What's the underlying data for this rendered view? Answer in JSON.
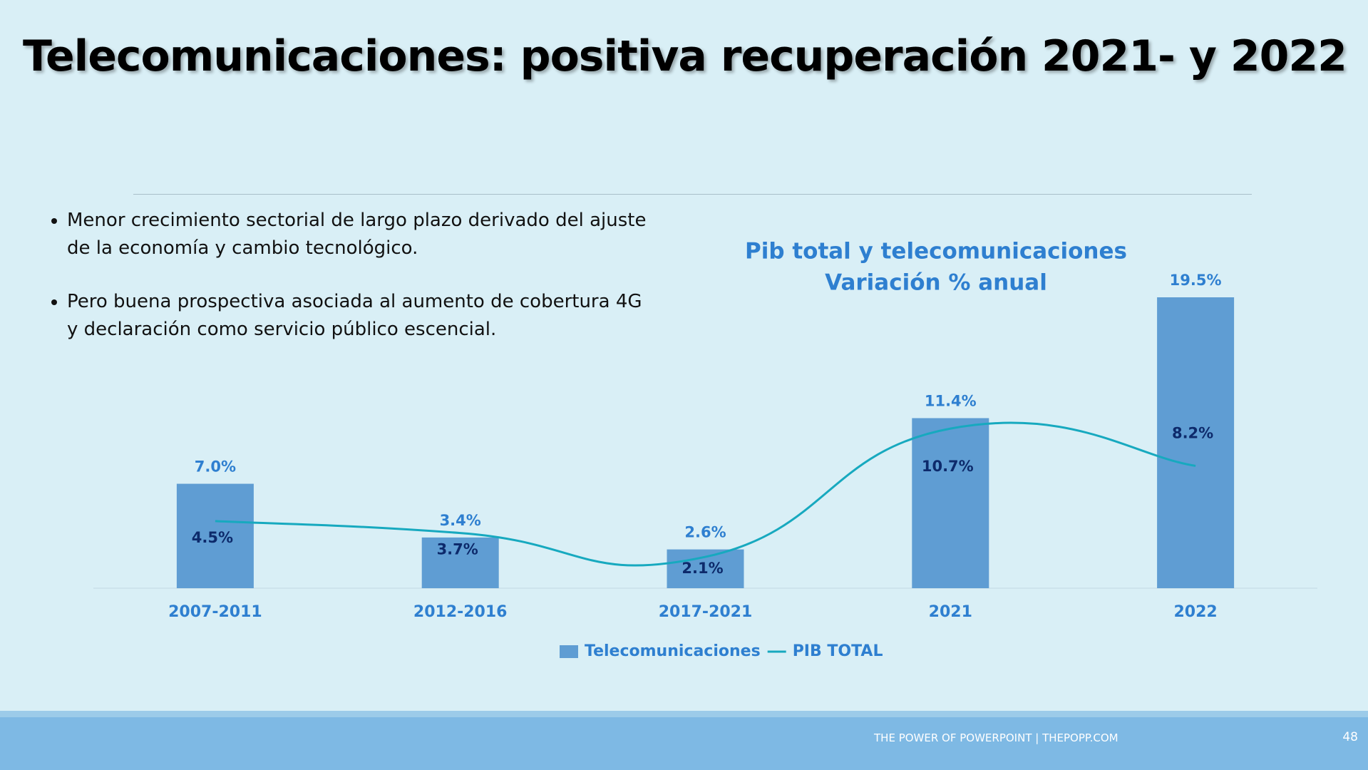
{
  "slide": {
    "title": "Telecomunicaciones: positiva recuperación 2021- y 2022",
    "bullets": [
      "Menor crecimiento sectorial de largo plazo derivado del ajuste de la economía y cambio tecnológico.",
      "Pero buena prospectiva asociada al aumento de cobertura 4G y declaración como servicio público escencial."
    ],
    "footer": "THE POWER OF POWERPOINT | THEPOPP.COM",
    "page_number": "48"
  },
  "chart_data": {
    "type": "bar",
    "title": [
      "Pib total y telecomunicaciones",
      "Variación % anual"
    ],
    "categories": [
      "2007-2011",
      "2012-2016",
      "2017-2021",
      "2021",
      "2022"
    ],
    "series": [
      {
        "name": "Telecomunicaciones",
        "type": "bar",
        "color": "#5f9dd3",
        "values": [
          7.0,
          3.4,
          2.6,
          11.4,
          19.5
        ],
        "value_labels": [
          "7.0%",
          "3.4%",
          "2.6%",
          "11.4%",
          "19.5%"
        ]
      },
      {
        "name": "PIB TOTAL",
        "type": "line",
        "color": "#17a9bf",
        "values": [
          4.5,
          3.7,
          2.1,
          10.7,
          8.2
        ],
        "value_labels": [
          "4.5%",
          "3.7%",
          "2.1%",
          "10.7%",
          "8.2%"
        ]
      }
    ],
    "legend": "bottom"
  }
}
